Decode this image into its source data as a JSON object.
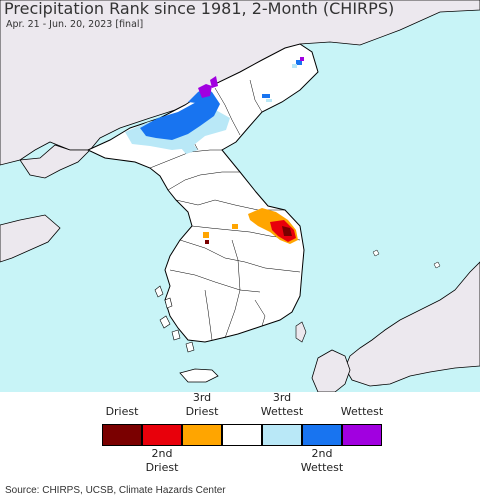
{
  "title": "Precipitation Rank since 1981, 2-Month (CHIRPS)",
  "subtitle": "Apr. 21 - Jun. 20, 2023 [final]",
  "source": "Source: CHIRPS, UCSB, Climate Hazards Center",
  "colors": {
    "sea": "#c8f4f7",
    "foreign_land": "#ece8ee",
    "study_land": "#ffffff",
    "border": "#000000"
  },
  "legend": {
    "top_labels": [
      {
        "id": "driest",
        "line1": "Driest",
        "line2": ""
      },
      {
        "id": "3rd-driest",
        "line1": "3rd",
        "line2": "Driest"
      },
      {
        "id": "3rd-wettest",
        "line1": "3rd",
        "line2": "Wettest"
      },
      {
        "id": "wettest",
        "line1": "Wettest",
        "line2": ""
      }
    ],
    "bottom_labels": [
      {
        "id": "2nd-driest",
        "line1": "2nd",
        "line2": "Driest"
      },
      {
        "id": "2nd-wettest",
        "line1": "2nd",
        "line2": "Wettest"
      }
    ],
    "swatches": [
      {
        "name": "driest",
        "color": "#7a0000"
      },
      {
        "name": "2nd-driest",
        "color": "#e8000b"
      },
      {
        "name": "3rd-driest",
        "color": "#ffa500"
      },
      {
        "name": "normal",
        "color": "#ffffff"
      },
      {
        "name": "3rd-wettest",
        "color": "#b9e8f7"
      },
      {
        "name": "2nd-wettest",
        "color": "#1874f0"
      },
      {
        "name": "wettest",
        "color": "#a100e0"
      }
    ]
  }
}
